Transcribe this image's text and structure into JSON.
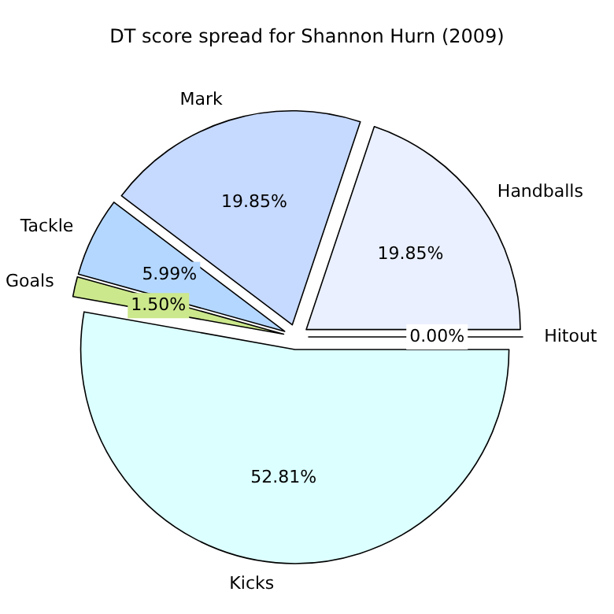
{
  "chart_data": {
    "type": "pie",
    "title": "DT score spread for Shannon Hurn (2009)",
    "categories": [
      "Hitout",
      "Handballs",
      "Mark",
      "Tackle",
      "Goals",
      "Kicks"
    ],
    "values": [
      0,
      19.85,
      19.85,
      5.99,
      1.5,
      52.81
    ],
    "colors": [
      "#f0f8ff",
      "#eaf0ff",
      "#c6d9ff",
      "#b4d7ff",
      "#cce88c",
      "#dcffff"
    ],
    "value_labels": [
      "0.00%",
      "19.85%",
      "19.85%",
      "5.99%",
      "1.50%",
      "52.81%"
    ]
  }
}
